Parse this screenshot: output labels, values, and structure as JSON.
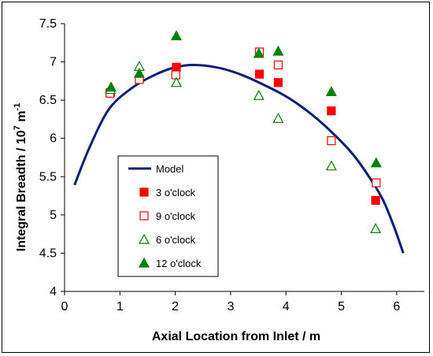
{
  "chart_data": {
    "type": "scatter",
    "title": "",
    "xlabel": "Axial Location from Inlet / m",
    "ylabel_main": "Integral Breadth / 10",
    "ylabel_exp": "7",
    "ylabel_unit_main": " m",
    "ylabel_unit_exp": "-1",
    "xlim": [
      0,
      6.5
    ],
    "ylim": [
      4,
      7.5
    ],
    "x_ticks": [
      "0",
      "1",
      "2",
      "3",
      "4",
      "5",
      "6"
    ],
    "y_ticks": [
      "4",
      "4.5",
      "5",
      "5.5",
      "6",
      "6.5",
      "7",
      "7.5"
    ],
    "grid": false,
    "legend_position": "lower-left",
    "series": [
      {
        "name": "Model",
        "kind": "line",
        "color": "#0a1f7a",
        "points": [
          [
            0.18,
            5.39
          ],
          [
            0.45,
            5.88
          ],
          [
            0.8,
            6.38
          ],
          [
            1.2,
            6.65
          ],
          [
            1.6,
            6.82
          ],
          [
            2.0,
            6.93
          ],
          [
            2.35,
            6.96
          ],
          [
            2.8,
            6.92
          ],
          [
            3.2,
            6.83
          ],
          [
            3.6,
            6.7
          ],
          [
            4.0,
            6.55
          ],
          [
            4.4,
            6.35
          ],
          [
            4.8,
            6.1
          ],
          [
            5.2,
            5.8
          ],
          [
            5.5,
            5.5
          ],
          [
            5.75,
            5.2
          ],
          [
            5.95,
            4.85
          ],
          [
            6.12,
            4.5
          ]
        ]
      },
      {
        "name": "3 o'clock",
        "kind": "marker",
        "marker": "square-filled",
        "color": "#ff0000",
        "points": [
          [
            0.83,
            6.6
          ],
          [
            2.02,
            6.93
          ],
          [
            3.52,
            6.84
          ],
          [
            3.86,
            6.73
          ],
          [
            4.82,
            6.36
          ],
          [
            5.62,
            5.19
          ]
        ]
      },
      {
        "name": "9 o'clock",
        "kind": "marker",
        "marker": "square-open",
        "color": "#ff0000",
        "points": [
          [
            0.82,
            6.59
          ],
          [
            1.35,
            6.77
          ],
          [
            2.01,
            6.83
          ],
          [
            3.52,
            7.13
          ],
          [
            3.86,
            6.96
          ],
          [
            4.82,
            5.97
          ],
          [
            5.63,
            5.42
          ]
        ]
      },
      {
        "name": "6 o'clock",
        "kind": "marker",
        "marker": "triangle-open",
        "color": "#008000",
        "points": [
          [
            0.83,
            6.64
          ],
          [
            1.35,
            6.94
          ],
          [
            2.02,
            6.73
          ],
          [
            3.51,
            6.56
          ],
          [
            3.86,
            6.26
          ],
          [
            4.82,
            5.64
          ],
          [
            5.62,
            4.82
          ]
        ]
      },
      {
        "name": "12 o'clock",
        "kind": "marker",
        "marker": "triangle-filled",
        "color": "#008000",
        "points": [
          [
            0.84,
            6.67
          ],
          [
            1.35,
            6.85
          ],
          [
            2.02,
            7.34
          ],
          [
            3.51,
            7.11
          ],
          [
            3.86,
            7.14
          ],
          [
            4.82,
            6.61
          ],
          [
            5.63,
            5.68
          ]
        ]
      }
    ]
  }
}
